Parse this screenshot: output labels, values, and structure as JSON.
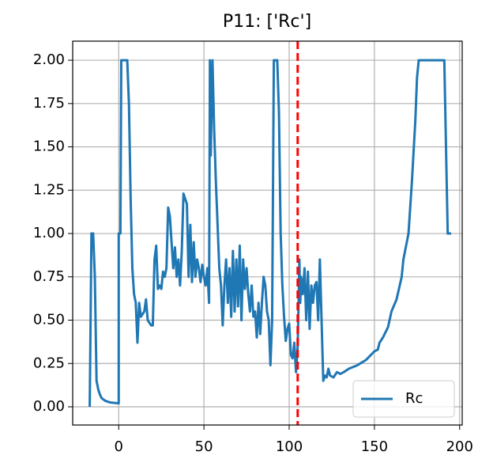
{
  "chart_data": {
    "type": "line",
    "title": "P11: ['Rc']",
    "x": [
      -17,
      -16,
      -15,
      -14,
      -13,
      -12,
      -11,
      -10,
      -8,
      -5,
      0,
      0,
      1,
      1.5,
      5,
      6,
      7,
      8,
      9,
      10,
      11,
      12,
      13,
      15,
      16,
      17,
      19,
      20,
      21,
      22,
      23,
      24,
      25,
      26,
      27,
      28,
      29,
      30,
      31,
      32,
      33,
      34,
      35,
      36,
      37,
      38,
      40,
      41,
      42,
      43,
      44,
      45,
      46,
      47,
      48,
      49,
      50,
      51,
      52,
      53,
      53.5,
      54,
      55,
      56,
      57,
      58,
      59,
      60,
      61,
      62,
      63,
      64,
      65,
      66,
      67,
      68,
      69,
      70,
      71,
      72,
      73,
      74,
      75,
      76,
      77,
      78,
      79,
      80,
      81,
      82,
      83,
      84,
      85,
      86,
      87,
      88,
      89,
      90,
      91,
      93,
      94,
      95,
      96,
      97,
      98,
      99,
      100,
      101,
      102,
      103,
      104,
      105,
      106,
      106.5,
      107,
      108,
      109,
      110,
      111,
      112,
      113,
      114,
      115,
      116,
      117,
      118,
      119,
      120,
      121,
      122,
      123,
      124,
      126,
      128,
      130,
      132,
      135,
      140,
      145,
      150,
      152,
      153,
      155,
      157,
      158,
      160,
      163,
      166,
      167,
      169,
      170,
      172,
      174,
      175,
      176,
      191,
      193,
      195
    ],
    "series": [
      {
        "name": "Rc",
        "color": "#1f77b4",
        "values": [
          0,
          1.0,
          1.0,
          0.75,
          0.15,
          0.1,
          0.07,
          0.05,
          0.035,
          0.025,
          0.02,
          1.0,
          1.0,
          2.0,
          2.0,
          1.75,
          1.2,
          0.8,
          0.65,
          0.6,
          0.37,
          0.6,
          0.52,
          0.55,
          0.62,
          0.5,
          0.47,
          0.47,
          0.85,
          0.93,
          0.68,
          0.7,
          0.68,
          0.78,
          0.75,
          0.8,
          1.15,
          1.1,
          0.95,
          0.8,
          0.92,
          0.75,
          0.85,
          0.7,
          0.9,
          1.23,
          1.17,
          0.75,
          1.05,
          0.72,
          0.95,
          0.75,
          0.85,
          0.8,
          0.72,
          0.82,
          0.75,
          0.7,
          0.8,
          0.6,
          2.0,
          1.45,
          2.0,
          1.6,
          1.3,
          1.05,
          0.8,
          0.7,
          0.47,
          0.7,
          0.85,
          0.6,
          0.8,
          0.52,
          0.9,
          0.55,
          0.85,
          0.58,
          0.93,
          0.5,
          0.85,
          0.68,
          0.8,
          0.65,
          0.55,
          0.7,
          0.52,
          0.55,
          0.4,
          0.6,
          0.42,
          0.6,
          0.75,
          0.7,
          0.55,
          0.5,
          0.24,
          0.5,
          2.0,
          2.0,
          1.7,
          1.0,
          0.7,
          0.52,
          0.38,
          0.45,
          0.48,
          0.3,
          0.28,
          0.37,
          0.2,
          0.35,
          0.85,
          0.6,
          0.75,
          0.65,
          0.8,
          0.5,
          0.78,
          0.45,
          0.7,
          0.6,
          0.7,
          0.72,
          0.5,
          0.85,
          0.5,
          0.15,
          0.18,
          0.17,
          0.22,
          0.18,
          0.17,
          0.2,
          0.19,
          0.2,
          0.22,
          0.24,
          0.27,
          0.32,
          0.33,
          0.37,
          0.4,
          0.44,
          0.46,
          0.55,
          0.62,
          0.75,
          0.85,
          0.95,
          1.0,
          1.3,
          1.65,
          1.9,
          2.0,
          2.0,
          1.0,
          1.0
        ]
      }
    ],
    "xlim": [
      -27,
      201.5
    ],
    "xticks": [
      0,
      50,
      100,
      150,
      200
    ],
    "ylim": [
      -0.105,
      2.11
    ],
    "yticks": [
      {
        "value": 0,
        "label": "0.00"
      },
      {
        "value": 0.25,
        "label": "0.25"
      },
      {
        "value": 0.5,
        "label": "0.50"
      },
      {
        "value": 0.75,
        "label": "0.75"
      },
      {
        "value": 1,
        "label": "1.00"
      },
      {
        "value": 1.25,
        "label": "1.25"
      },
      {
        "value": 1.5,
        "label": "1.50"
      },
      {
        "value": 1.75,
        "label": "1.75"
      },
      {
        "value": 2,
        "label": "2.00"
      }
    ],
    "grid": true,
    "legend": "lower right",
    "vline": {
      "x": 105,
      "color": "#ff0000"
    }
  }
}
